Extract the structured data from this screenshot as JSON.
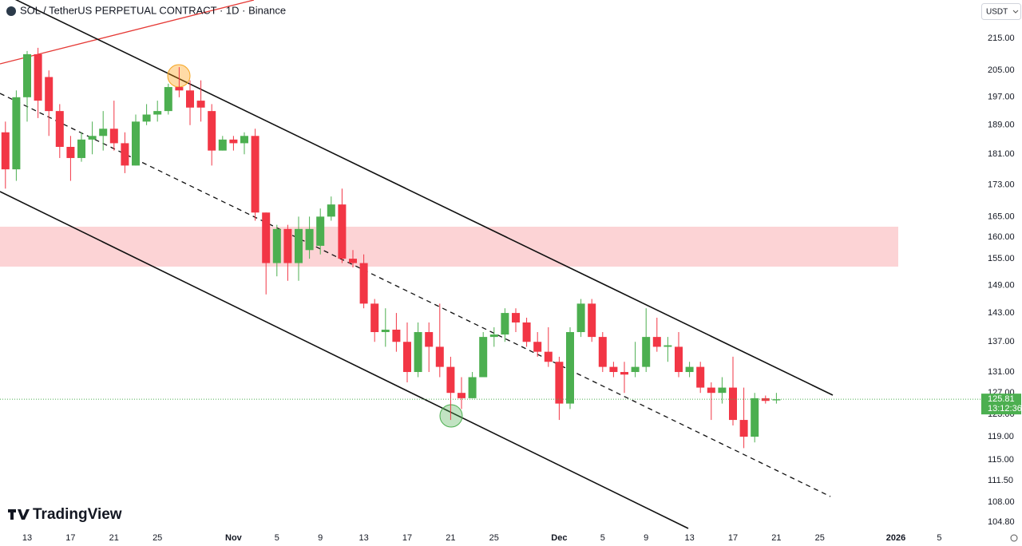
{
  "chart_data": {
    "type": "candlestick",
    "title": "SOL / TetherUS PERPETUAL CONTRACT · 1D · Binance",
    "quote_currency": "USDT",
    "brand": "TradingView",
    "log_scale": true,
    "grid": false,
    "up_color": "#4caf50",
    "down_color": "#f23645",
    "categories": [
      null,
      null,
      "13",
      null,
      null,
      null,
      "17",
      null,
      null,
      null,
      "21",
      null,
      null,
      null,
      "25",
      null,
      null,
      null,
      null,
      null,
      null,
      "Nov",
      null,
      null,
      null,
      "5",
      null,
      null,
      null,
      "9",
      null,
      null,
      null,
      "13",
      null,
      null,
      null,
      "17",
      null,
      null,
      null,
      "21",
      null,
      null,
      null,
      "25",
      null,
      null,
      null,
      null,
      null,
      "Dec",
      null,
      null,
      null,
      "5",
      null,
      null,
      null,
      "9",
      null,
      null,
      null,
      "13",
      null,
      null,
      null,
      "17",
      null,
      null,
      null,
      "21",
      null,
      null,
      null,
      "25",
      null,
      null,
      null,
      null,
      null,
      null,
      "2026",
      null,
      null,
      null,
      "5",
      null
    ],
    "open": [
      187,
      177,
      197,
      210,
      203,
      193,
      183,
      180,
      185,
      186,
      188,
      184,
      178,
      190,
      192,
      193,
      200,
      199,
      196,
      193,
      182,
      185,
      184,
      186,
      166,
      154,
      162,
      154,
      157,
      158,
      165,
      168,
      155,
      154,
      145,
      139,
      139.5,
      137,
      131,
      139,
      136,
      132,
      127,
      126,
      130,
      138,
      138.5,
      143,
      141,
      137,
      135,
      133,
      125,
      139,
      145,
      138,
      132,
      131,
      131,
      132,
      138,
      136,
      136,
      131,
      132,
      128,
      127,
      128,
      122,
      119,
      126,
      125.6,
      null,
      null,
      null,
      null,
      null,
      null,
      null,
      null,
      null,
      null,
      null,
      null,
      null,
      null,
      null,
      null
    ],
    "high": [
      190,
      199,
      211,
      212,
      205,
      195,
      186,
      187,
      190,
      193,
      196,
      187,
      192,
      195,
      196,
      201,
      206,
      202,
      202,
      195,
      186,
      186,
      187,
      188,
      166,
      163,
      163,
      165,
      165,
      167,
      170,
      172,
      157,
      156,
      146,
      144,
      143,
      141,
      141,
      141,
      145,
      134,
      130,
      131,
      139,
      140,
      144,
      144,
      142,
      139,
      140,
      134,
      140,
      146,
      146,
      139,
      133,
      133,
      137,
      144,
      142,
      138,
      139,
      133,
      133,
      129,
      130,
      134,
      128,
      127,
      126.5,
      127,
      null,
      null,
      null,
      null,
      null,
      null,
      null,
      null,
      null,
      null,
      null,
      null,
      null,
      null,
      null,
      null
    ],
    "low": [
      172,
      174,
      190,
      191,
      186,
      180,
      174,
      179,
      181,
      182,
      182,
      176,
      178,
      189,
      190,
      192,
      197,
      189,
      190,
      178,
      182,
      182,
      181,
      164,
      147,
      151,
      150,
      150,
      155,
      156,
      164,
      154,
      153,
      144,
      137,
      136,
      135,
      129,
      130,
      131,
      130,
      122,
      124,
      126,
      130,
      136,
      137,
      139,
      136,
      134,
      132,
      122,
      124,
      138,
      137,
      131,
      130,
      127,
      130,
      131,
      135,
      133,
      130,
      130,
      127,
      122,
      125,
      121,
      117,
      118,
      125,
      125,
      null,
      null,
      null,
      null,
      null,
      null,
      null,
      null,
      null,
      null,
      null,
      null,
      null,
      null,
      null,
      null
    ],
    "close": [
      177,
      197,
      210,
      196,
      193,
      183,
      180,
      185,
      186,
      188,
      184,
      178,
      190,
      192,
      193,
      200,
      199,
      194,
      194,
      182,
      185,
      184,
      186,
      166,
      154,
      162,
      154,
      162,
      162,
      165,
      168,
      155,
      154,
      145,
      139,
      139.5,
      137,
      131,
      139,
      136,
      132,
      127,
      126,
      130,
      138,
      138.5,
      143,
      141,
      137,
      135,
      133,
      125,
      139,
      145,
      138,
      132,
      131,
      130.5,
      132,
      138,
      136,
      136.3,
      131,
      132,
      128,
      127,
      128,
      122,
      119,
      126,
      125.5,
      125.81,
      null,
      null,
      null,
      null,
      null,
      null,
      null,
      null,
      null,
      null,
      null,
      null,
      null,
      null,
      null,
      null
    ],
    "last_price": 125.81,
    "countdown": "13:12:36",
    "ylim": [
      103.6,
      227.6
    ],
    "yticks": [
      {
        "value": 215,
        "label": "215.00"
      },
      {
        "value": 205,
        "label": "205.00"
      },
      {
        "value": 197,
        "label": "197.00"
      },
      {
        "value": 189,
        "label": "189.00"
      },
      {
        "value": 181,
        "label": "181.00"
      },
      {
        "value": 173,
        "label": "173.00"
      },
      {
        "value": 165,
        "label": "165.00"
      },
      {
        "value": 160,
        "label": "160.00"
      },
      {
        "value": 155,
        "label": "155.00"
      },
      {
        "value": 149,
        "label": "149.00"
      },
      {
        "value": 143,
        "label": "143.00"
      },
      {
        "value": 137,
        "label": "137.00"
      },
      {
        "value": 131,
        "label": "131.00"
      },
      {
        "value": 127,
        "label": "127.00"
      },
      {
        "value": 123,
        "label": "123.00"
      },
      {
        "value": 119,
        "label": "119.00"
      },
      {
        "value": 115,
        "label": "115.00"
      },
      {
        "value": 111.5,
        "label": "111.50"
      },
      {
        "value": 108,
        "label": "108.00"
      },
      {
        "value": 104.8,
        "label": "104.80"
      }
    ]
  }
}
